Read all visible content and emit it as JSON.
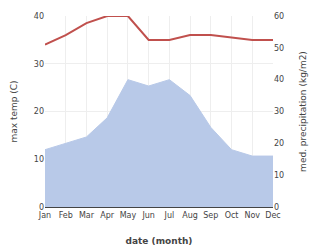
{
  "chart_data": {
    "type": "line",
    "xlabel": "date (month)",
    "ylabel": "max temp (C)",
    "y2label": "med. precipitation (kg/m2)",
    "categories": [
      "Jan",
      "Feb",
      "Mar",
      "Apr",
      "May",
      "Jun",
      "Jul",
      "Aug",
      "Sep",
      "Oct",
      "Nov",
      "Dec"
    ],
    "series": [
      {
        "type": "area",
        "axis": "y2",
        "color": "#b8c9e8",
        "values": [
          18,
          20,
          22,
          28,
          40,
          38,
          40,
          35,
          25,
          18,
          16,
          16
        ]
      },
      {
        "type": "line",
        "color": "#c0504d",
        "values": [
          34.0,
          36.0,
          38.5,
          40.0,
          40.0,
          35.0,
          35.0,
          36.0,
          36.0,
          35.5,
          35.0,
          35.0
        ]
      }
    ],
    "ylim": [
      0,
      40
    ],
    "yticks": [
      0,
      10,
      20,
      30,
      40
    ],
    "y2lim": [
      0,
      60
    ],
    "y2ticks": [
      0,
      10,
      20,
      30,
      40,
      50,
      60
    ],
    "grid": true
  }
}
